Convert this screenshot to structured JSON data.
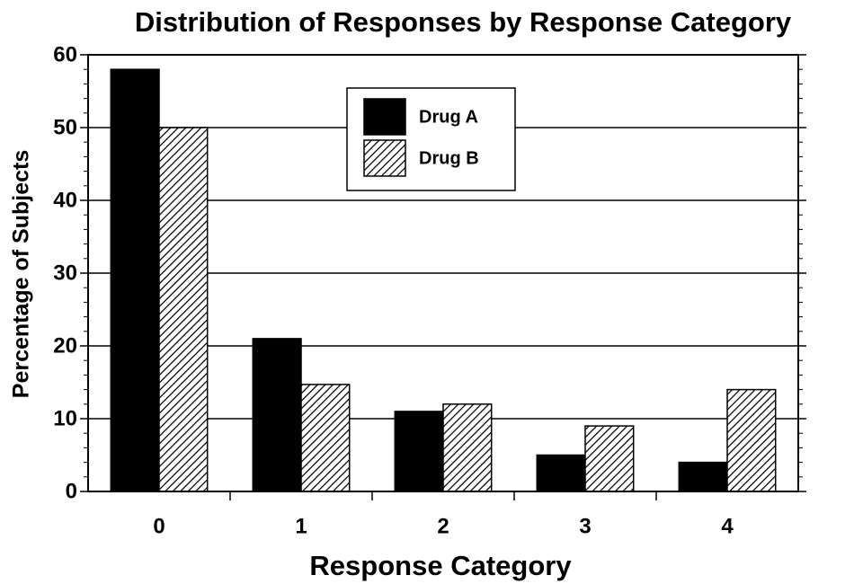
{
  "chart_data": {
    "type": "bar",
    "title": "Distribution of Responses by Response Category",
    "x_label": "Response Category",
    "y_label": "Percentage of Subjects",
    "categories": [
      "0",
      "1",
      "2",
      "3",
      "4"
    ],
    "series": [
      {
        "name": "Drug A",
        "color": "#000000",
        "values": [
          58,
          21,
          11,
          5,
          4
        ]
      },
      {
        "name": "Drug B",
        "color": "#000000",
        "pattern": "diagonal-hatch",
        "values": [
          50,
          14.7,
          12,
          9,
          14
        ]
      }
    ],
    "ylim": [
      0,
      60
    ],
    "yticks": [
      0,
      10,
      20,
      30,
      40,
      50,
      60
    ],
    "grid": true,
    "legend": "top-center"
  }
}
